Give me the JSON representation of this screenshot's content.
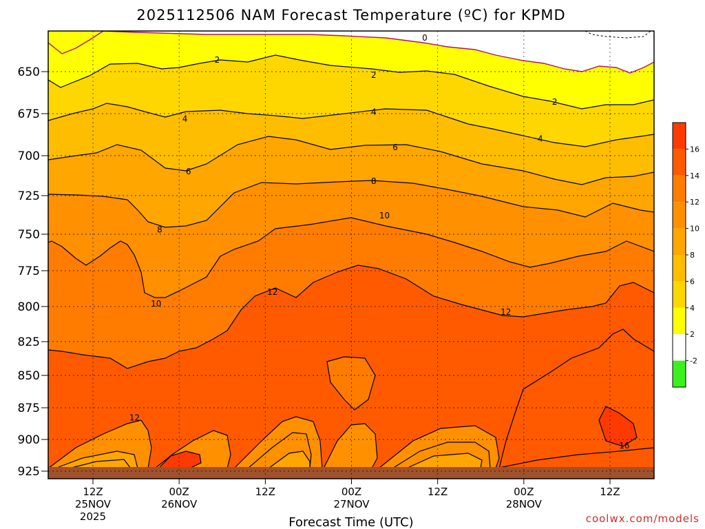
{
  "chart_data": {
    "type": "heatmap",
    "title": "2025112506 NAM Forecast Temperature (ºC) for KPMD",
    "xlabel": "Forecast Time (UTC)",
    "ylabel": "",
    "y_scale": "pressure (reversed)",
    "y_ticks": [
      "650",
      "675",
      "700",
      "725",
      "750",
      "775",
      "800",
      "825",
      "850",
      "875",
      "900",
      "925"
    ],
    "y_tick_values": [
      650,
      675,
      700,
      725,
      750,
      775,
      800,
      825,
      850,
      875,
      900,
      925
    ],
    "x_ticks": [
      {
        "hours": 6,
        "label": "12Z",
        "date": "25NOV",
        "year": "2025"
      },
      {
        "hours": 18,
        "label": "00Z",
        "date": "26NOV",
        "year": ""
      },
      {
        "hours": 30,
        "label": "12Z",
        "date": "",
        "year": ""
      },
      {
        "hours": 42,
        "label": "00Z",
        "date": "27NOV",
        "year": ""
      },
      {
        "hours": 54,
        "label": "12Z",
        "date": "",
        "year": ""
      },
      {
        "hours": 66,
        "label": "00Z",
        "date": "28NOV",
        "year": ""
      },
      {
        "hours": 78,
        "label": "12Z",
        "date": "",
        "year": ""
      }
    ],
    "colorbar": {
      "labels": [
        "16",
        "14",
        "12",
        "10",
        "8",
        "6",
        "4",
        "2",
        "-2"
      ],
      "colors": [
        "#ff3a00",
        "#ff5a00",
        "#ff7c00",
        "#ff9000",
        "#ffa600",
        "#ffbd00",
        "#ffd700",
        "#ffff00",
        "#ffffff",
        "#3cf01e"
      ]
    },
    "contour_labels": [
      {
        "text": "0",
        "hours": 52.2,
        "pressure": 630
      },
      {
        "text": "2",
        "hours": 23.3,
        "pressure": 643
      },
      {
        "text": "2",
        "hours": 45.1,
        "pressure": 652
      },
      {
        "text": "2",
        "hours": 70.3,
        "pressure": 668
      },
      {
        "text": "4",
        "hours": 18.8,
        "pressure": 678
      },
      {
        "text": "4",
        "hours": 45.1,
        "pressure": 674
      },
      {
        "text": "4",
        "hours": 68.3,
        "pressure": 690
      },
      {
        "text": "6",
        "hours": 19.3,
        "pressure": 710
      },
      {
        "text": "6",
        "hours": 48.1,
        "pressure": 695
      },
      {
        "text": "8",
        "hours": 15.3,
        "pressure": 747
      },
      {
        "text": "8",
        "hours": 45.1,
        "pressure": 716
      },
      {
        "text": "10",
        "hours": 14.8,
        "pressure": 798
      },
      {
        "text": "10",
        "hours": 46.6,
        "pressure": 738
      },
      {
        "text": "12",
        "hours": 11.8,
        "pressure": 883
      },
      {
        "text": "12",
        "hours": 31.0,
        "pressure": 790
      },
      {
        "text": "12",
        "hours": 63.5,
        "pressure": 804
      },
      {
        "text": "16",
        "hours": 80.0,
        "pressure": 905
      }
    ]
  },
  "credit": "coolwx.com/models"
}
